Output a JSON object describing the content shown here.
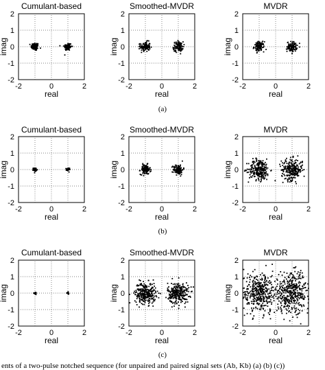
{
  "figure": {
    "caption_text": "ents of a two-pulse notched sequence (for unpaired and paired signal sets (Ab, Kb) (a) (b) (c))"
  },
  "chart_data": [
    {
      "type": "scatter",
      "row": "a",
      "title": "Cumulant-based",
      "xlabel": "real",
      "ylabel": "imag",
      "xlim": [
        -2,
        2
      ],
      "ylim": [
        -2,
        2
      ],
      "xticks": [
        -2,
        0,
        2
      ],
      "yticks": [
        -2,
        -1,
        0,
        1,
        2
      ],
      "grid": "dotted",
      "clusters": [
        {
          "center": [
            -1,
            0
          ],
          "spread": 0.12,
          "points": 90
        },
        {
          "center": [
            1,
            0
          ],
          "spread": 0.12,
          "points": 90
        }
      ]
    },
    {
      "type": "scatter",
      "row": "a",
      "title": "Smoothed-MVDR",
      "xlabel": "real",
      "ylabel": "imag",
      "xlim": [
        -2,
        2
      ],
      "ylim": [
        -2,
        2
      ],
      "xticks": [
        -2,
        0,
        2
      ],
      "yticks": [
        -2,
        -1,
        0,
        1,
        2
      ],
      "grid": "dotted",
      "clusters": [
        {
          "center": [
            -1,
            0
          ],
          "spread": 0.15,
          "points": 110
        },
        {
          "center": [
            1,
            0
          ],
          "spread": 0.15,
          "points": 110
        }
      ]
    },
    {
      "type": "scatter",
      "row": "a",
      "title": "MVDR",
      "xlabel": "real",
      "ylabel": "imag",
      "xlim": [
        -2,
        2
      ],
      "ylim": [
        -2,
        2
      ],
      "xticks": [
        -2,
        0,
        2
      ],
      "yticks": [
        -2,
        -1,
        0,
        1,
        2
      ],
      "grid": "dotted",
      "clusters": [
        {
          "center": [
            -1,
            0
          ],
          "spread": 0.15,
          "points": 110
        },
        {
          "center": [
            1,
            0
          ],
          "spread": 0.15,
          "points": 110
        }
      ]
    },
    {
      "type": "scatter",
      "row": "b",
      "title": "Cumulant-based",
      "xlabel": "real",
      "ylabel": "imag",
      "xlim": [
        -2,
        2
      ],
      "ylim": [
        -2,
        2
      ],
      "xticks": [
        -2,
        0,
        2
      ],
      "yticks": [
        -2,
        -1,
        0,
        1,
        2
      ],
      "grid": "dotted",
      "clusters": [
        {
          "center": [
            -1,
            0
          ],
          "spread": 0.05,
          "points": 40
        },
        {
          "center": [
            1,
            0
          ],
          "spread": 0.05,
          "points": 40
        }
      ]
    },
    {
      "type": "scatter",
      "row": "b",
      "title": "Smoothed-MVDR",
      "xlabel": "real",
      "ylabel": "imag",
      "xlim": [
        -2,
        2
      ],
      "ylim": [
        -2,
        2
      ],
      "xticks": [
        -2,
        0,
        2
      ],
      "yticks": [
        -2,
        -1,
        0,
        1,
        2
      ],
      "grid": "dotted",
      "clusters": [
        {
          "center": [
            -1,
            0
          ],
          "spread": 0.15,
          "points": 120
        },
        {
          "center": [
            1,
            0
          ],
          "spread": 0.15,
          "points": 120
        }
      ]
    },
    {
      "type": "scatter",
      "row": "b",
      "title": "MVDR",
      "xlabel": "real",
      "ylabel": "imag",
      "xlim": [
        -2,
        2
      ],
      "ylim": [
        -2,
        2
      ],
      "xticks": [
        -2,
        0,
        2
      ],
      "yticks": [
        -2,
        -1,
        0,
        1,
        2
      ],
      "grid": "dotted",
      "clusters": [
        {
          "center": [
            -1,
            0
          ],
          "spread": 0.32,
          "points": 260
        },
        {
          "center": [
            1,
            0
          ],
          "spread": 0.32,
          "points": 260
        }
      ]
    },
    {
      "type": "scatter",
      "row": "c",
      "title": "Cumulant-based",
      "xlabel": "real",
      "ylabel": "imag",
      "xlim": [
        -2,
        2
      ],
      "ylim": [
        -2,
        2
      ],
      "xticks": [
        -2,
        0,
        2
      ],
      "yticks": [
        -2,
        -1,
        0,
        1,
        2
      ],
      "grid": "dotted",
      "clusters": [
        {
          "center": [
            -1,
            0
          ],
          "spread": 0.03,
          "points": 20
        },
        {
          "center": [
            1,
            0
          ],
          "spread": 0.03,
          "points": 20
        }
      ]
    },
    {
      "type": "scatter",
      "row": "c",
      "title": "Smoothed-MVDR",
      "xlabel": "real",
      "ylabel": "imag",
      "xlim": [
        -2,
        2
      ],
      "ylim": [
        -2,
        2
      ],
      "xticks": [
        -2,
        0,
        2
      ],
      "yticks": [
        -2,
        -1,
        0,
        1,
        2
      ],
      "grid": "dotted",
      "clusters": [
        {
          "center": [
            -1,
            0
          ],
          "spread": 0.32,
          "points": 280
        },
        {
          "center": [
            1,
            0
          ],
          "spread": 0.32,
          "points": 280
        }
      ]
    },
    {
      "type": "scatter",
      "row": "c",
      "title": "MVDR",
      "xlabel": "real",
      "ylabel": "imag",
      "xlim": [
        -2,
        2
      ],
      "ylim": [
        -2,
        2
      ],
      "xticks": [
        -2,
        0,
        2
      ],
      "yticks": [
        -2,
        -1,
        0,
        1,
        2
      ],
      "grid": "dotted",
      "clusters": [
        {
          "center": [
            -1,
            0
          ],
          "spread": 0.6,
          "points": 420
        },
        {
          "center": [
            1,
            0
          ],
          "spread": 0.6,
          "points": 420
        }
      ]
    }
  ],
  "row_labels": [
    "(a)",
    "(b)",
    "(c)"
  ]
}
